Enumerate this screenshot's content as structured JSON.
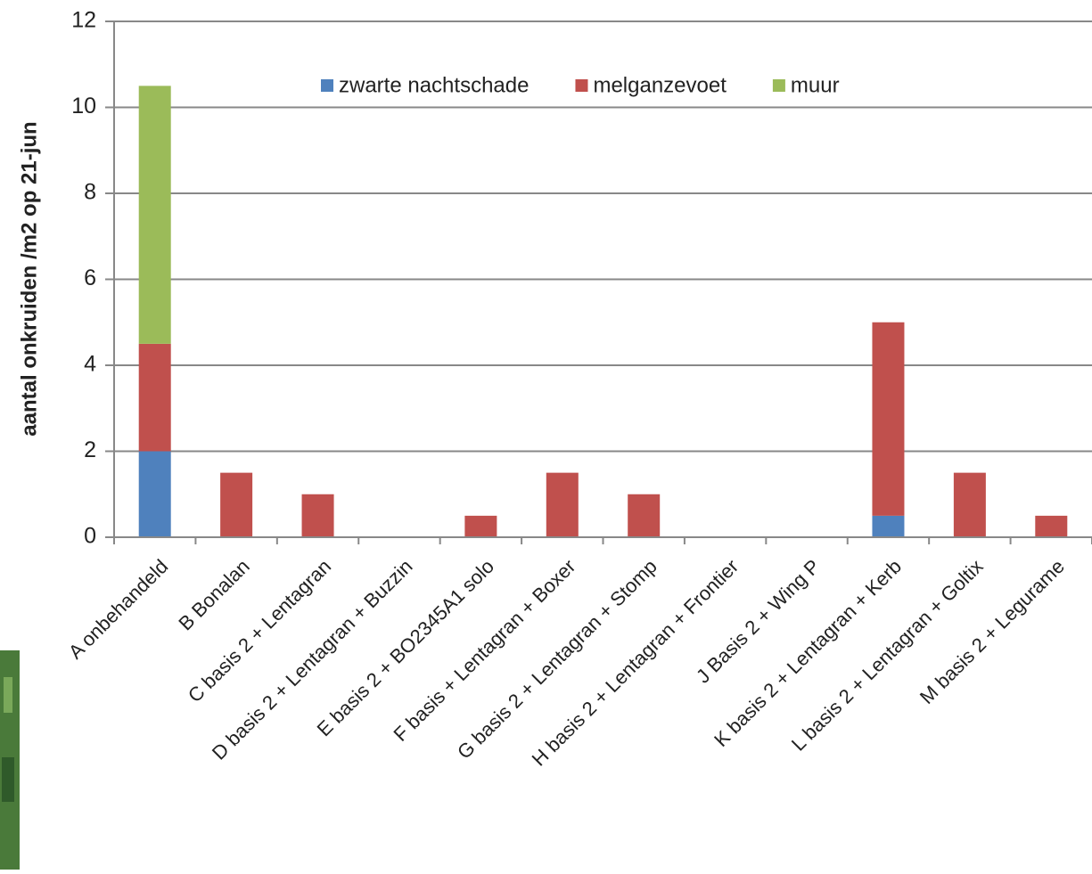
{
  "chart_data": {
    "type": "stacked-bar",
    "y_label": "aantal onkruiden /m2 op 21-jun",
    "categories": [
      "A onbehandeld",
      "B Bonalan",
      "C basis 2  + Lentagran",
      "D basis 2 + Lentagran + Buzzin",
      "E basis 2 + BO2345A1 solo",
      "F basis + Lentagran + Boxer",
      "G basis 2 + Lentagran + Stomp",
      "H basis 2 + Lentagran + Frontier",
      "J Basis 2 + Wing P",
      "K basis 2 + Lentagran + Kerb",
      "L basis 2 + Lentagran + Goltix",
      "M basis 2 + Legurame"
    ],
    "series": [
      {
        "name": "zwarte nachtschade",
        "color": "#4f81bd",
        "values": [
          2,
          0,
          0,
          0,
          0,
          0,
          0,
          0,
          0,
          0.5,
          0,
          0
        ]
      },
      {
        "name": "melganzevoet",
        "color": "#c0504d",
        "values": [
          2.5,
          1.5,
          1,
          0,
          0.5,
          1.5,
          1,
          0,
          0,
          4.5,
          1.5,
          0.5
        ]
      },
      {
        "name": "muur",
        "color": "#9bbb59",
        "values": [
          6,
          0,
          0,
          0,
          0,
          0,
          0,
          0,
          0,
          0,
          0,
          0
        ]
      }
    ],
    "ylim": [
      0,
      12
    ],
    "yticks": [
      0,
      2,
      4,
      6,
      8,
      10,
      12
    ],
    "grid": true,
    "legend": "top"
  }
}
